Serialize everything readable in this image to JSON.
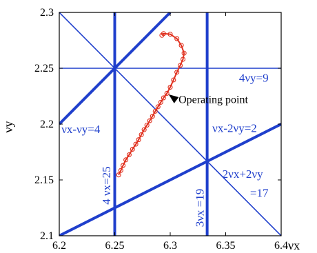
{
  "chart_data": {
    "type": "line",
    "xlim": [
      6.2,
      6.4
    ],
    "ylim": [
      2.1,
      2.3
    ],
    "x_ticks": [
      "6.2",
      "6.25",
      "6.3",
      "6.35",
      "6.4"
    ],
    "y_ticks": [
      "2.1",
      "2.15",
      "2.2",
      "2.25",
      "2.3"
    ],
    "xlabel": "νx",
    "ylabel": "νy",
    "grid": false,
    "colors": {
      "resonance": "#1f3fcc",
      "trajectory": "#e0301e",
      "frame": "#000000"
    },
    "resonance_lines": [
      {
        "name": "4 νx=25",
        "kind": "vertical",
        "x": 6.25,
        "strength": "thick"
      },
      {
        "name": "3νx =19",
        "kind": "vertical",
        "x": 6.3333,
        "strength": "thick"
      },
      {
        "name": "4νy=9",
        "kind": "horizontal",
        "y": 2.25,
        "strength": "thin"
      },
      {
        "name": "νx-νy=4",
        "kind": "line",
        "points": [
          [
            6.2,
            2.2
          ],
          [
            6.25,
            2.25
          ]
        ],
        "strength": "thick"
      },
      {
        "name": "νx-νy=4 (ext)",
        "kind": "line",
        "points": [
          [
            6.25,
            2.25
          ],
          [
            6.3,
            2.3
          ]
        ],
        "strength": "thick"
      },
      {
        "name": "νx-2νy=2",
        "kind": "line",
        "points": [
          [
            6.2,
            2.1
          ],
          [
            6.4,
            2.2
          ]
        ],
        "strength": "thick"
      },
      {
        "name": "2νx+2νy=17",
        "kind": "line",
        "points": [
          [
            6.2,
            2.3
          ],
          [
            6.4,
            2.1
          ]
        ],
        "strength": "thin"
      }
    ],
    "resonance_labels": [
      {
        "text": "4νy=9",
        "x": 6.362,
        "y": 2.238,
        "rotate": 0,
        "anchor": "start"
      },
      {
        "text": "νx-νy=4",
        "x": 6.202,
        "y": 2.192,
        "rotate": 0,
        "anchor": "start"
      },
      {
        "text": "νx-2νy=2",
        "x": 6.338,
        "y": 2.193,
        "rotate": 0,
        "anchor": "start"
      },
      {
        "text": "2νx+2νy",
        "x": 6.347,
        "y": 2.152,
        "rotate": 0,
        "anchor": "start"
      },
      {
        "text": "=17",
        "x": 6.372,
        "y": 2.135,
        "rotate": 0,
        "anchor": "start"
      },
      {
        "text": "4 νx=25",
        "x": 6.246,
        "y": 2.145,
        "rotate": -90,
        "anchor": "middle"
      },
      {
        "text": "3νx =19",
        "x": 6.33,
        "y": 2.125,
        "rotate": -90,
        "anchor": "middle"
      }
    ],
    "series": [
      {
        "type": "line",
        "x": [
          6.2535,
          6.2555,
          6.2575,
          6.26,
          6.263,
          6.266,
          6.269,
          6.2715,
          6.274,
          6.2765,
          6.279,
          6.2815,
          6.284,
          6.2865,
          6.289,
          6.2915,
          6.294,
          6.297,
          6.3,
          6.303,
          6.306,
          6.309,
          6.3115,
          6.3125,
          6.31,
          6.306,
          6.3,
          6.294,
          6.2925
        ],
        "y": [
          2.1545,
          2.1585,
          2.163,
          2.168,
          2.1725,
          2.1775,
          2.182,
          2.186,
          2.1905,
          2.195,
          2.199,
          2.203,
          2.207,
          2.2115,
          2.2155,
          2.2195,
          2.2235,
          2.2275,
          2.233,
          2.2395,
          2.2465,
          2.2525,
          2.258,
          2.2635,
          2.2705,
          2.2765,
          2.2805,
          2.281,
          2.2795
        ]
      }
    ],
    "annotations": [
      {
        "text": "Operating point",
        "arrow_to": [
          6.2975,
          2.226
        ],
        "text_at": [
          6.3075,
          2.2218
        ]
      }
    ]
  }
}
